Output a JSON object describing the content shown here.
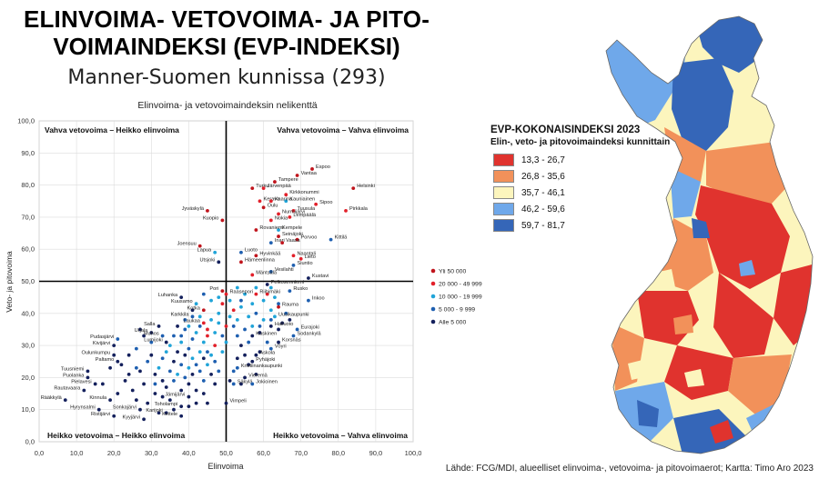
{
  "title_line1": "ELINVOIMA- VETOVOIMA- JA PITO-",
  "title_line2": "VOIMAINDEKSI (EVP-INDEKSI)",
  "subtitle": "Manner-Suomen kunnissa (293)",
  "chart_data": {
    "type": "scatter",
    "title": "Elinvoima- ja vetovoimaindeksin nelikenttä",
    "xlabel": "Elinvoima",
    "ylabel": "Veto- ja pitovoima",
    "xlim": [
      0,
      100
    ],
    "ylim": [
      0,
      100
    ],
    "xticks": [
      "0,0",
      "10,0",
      "20,0",
      "30,0",
      "40,0",
      "50,0",
      "60,0",
      "70,0",
      "80,0",
      "90,0",
      "100,0"
    ],
    "yticks": [
      "0,0",
      "10,0",
      "20,0",
      "30,0",
      "40,0",
      "50,0",
      "60,0",
      "70,0",
      "80,0",
      "90,0",
      "100,0"
    ],
    "divider_x": 50,
    "divider_y": 50,
    "grid": true,
    "quadrants": {
      "top_left": "Vahva vetovoima – Heikko elinvoima",
      "top_right": "Vahva vetovoima – Vahva elinvoima",
      "bottom_left": "Heikko vetovoima – Heikko elinvoima",
      "bottom_right": "Heikko vetovoima – Vahva elinvoima"
    },
    "legend_placement": "right",
    "categories": [
      {
        "key": "c1",
        "label": "Yli 50 000",
        "color": "#c0141c"
      },
      {
        "key": "c2",
        "label": "20 000 - 49 999",
        "color": "#e2202a"
      },
      {
        "key": "c3",
        "label": "10 000 - 19 999",
        "color": "#20a4d8"
      },
      {
        "key": "c4",
        "label": "5 000 - 9 999",
        "color": "#1e5fb0"
      },
      {
        "key": "c5",
        "label": "Alle 5 000",
        "color": "#14205c"
      }
    ],
    "labeled_points": [
      {
        "name": "Espoo",
        "x": 73,
        "y": 85,
        "cat": "c1"
      },
      {
        "name": "Vantaa",
        "x": 69,
        "y": 83,
        "cat": "c1"
      },
      {
        "name": "Helsinki",
        "x": 84,
        "y": 79,
        "cat": "c1"
      },
      {
        "name": "Tampere",
        "x": 63,
        "y": 81,
        "cat": "c1"
      },
      {
        "name": "Turku",
        "x": 57,
        "y": 79,
        "cat": "c1"
      },
      {
        "name": "Järvenpää",
        "x": 60,
        "y": 79,
        "cat": "c2"
      },
      {
        "name": "Kirkkonummi",
        "x": 66,
        "y": 77,
        "cat": "c2"
      },
      {
        "name": "Kauniainen",
        "x": 66,
        "y": 75,
        "cat": "c3"
      },
      {
        "name": "Kerava",
        "x": 59,
        "y": 75,
        "cat": "c2"
      },
      {
        "name": "Kaarina",
        "x": 62,
        "y": 75,
        "cat": "c2"
      },
      {
        "name": "Sipoo",
        "x": 74,
        "y": 74,
        "cat": "c2"
      },
      {
        "name": "Oulu",
        "x": 60,
        "y": 73,
        "cat": "c1"
      },
      {
        "name": "Tuusula",
        "x": 68,
        "y": 72,
        "cat": "c2"
      },
      {
        "name": "Pirkkala",
        "x": 82,
        "y": 72,
        "cat": "c2"
      },
      {
        "name": "Nurmijärvi",
        "x": 64,
        "y": 71,
        "cat": "c2"
      },
      {
        "name": "Jyväskylä",
        "x": 45,
        "y": 72,
        "cat": "c1"
      },
      {
        "name": "Lempäälä",
        "x": 67,
        "y": 70,
        "cat": "c2"
      },
      {
        "name": "Kuopio",
        "x": 49,
        "y": 69,
        "cat": "c1"
      },
      {
        "name": "Nokia",
        "x": 62,
        "y": 69,
        "cat": "c2"
      },
      {
        "name": "Kempele",
        "x": 64,
        "y": 66,
        "cat": "c3"
      },
      {
        "name": "Rovaniemi",
        "x": 58,
        "y": 66,
        "cat": "c1"
      },
      {
        "name": "Seinäjoki",
        "x": 64,
        "y": 64,
        "cat": "c1"
      },
      {
        "name": "Porvoo",
        "x": 69,
        "y": 63,
        "cat": "c1"
      },
      {
        "name": "Inari",
        "x": 62,
        "y": 62,
        "cat": "c4"
      },
      {
        "name": "Vaasa",
        "x": 65,
        "y": 62,
        "cat": "c1"
      },
      {
        "name": "Kittilä",
        "x": 78,
        "y": 63,
        "cat": "c4"
      },
      {
        "name": "Joensuu",
        "x": 43,
        "y": 61,
        "cat": "c1"
      },
      {
        "name": "Naantali",
        "x": 68,
        "y": 58,
        "cat": "c2"
      },
      {
        "name": "Lapua",
        "x": 47,
        "y": 59,
        "cat": "c3"
      },
      {
        "name": "Luoto",
        "x": 54,
        "y": 59,
        "cat": "c4"
      },
      {
        "name": "Hyvinkää",
        "x": 58,
        "y": 58,
        "cat": "c1"
      },
      {
        "name": "Lieto",
        "x": 70,
        "y": 57,
        "cat": "c2"
      },
      {
        "name": "Utsjoki",
        "x": 48,
        "y": 56,
        "cat": "c5"
      },
      {
        "name": "Hämeenlinna",
        "x": 54,
        "y": 56,
        "cat": "c1"
      },
      {
        "name": "Siuntio",
        "x": 68,
        "y": 55,
        "cat": "c4"
      },
      {
        "name": "Vesilahti",
        "x": 62,
        "y": 53,
        "cat": "c4"
      },
      {
        "name": "Mäntsälä",
        "x": 57,
        "y": 52,
        "cat": "c2"
      },
      {
        "name": "Kustavi",
        "x": 72,
        "y": 51,
        "cat": "c5"
      },
      {
        "name": "Pelkosenniemi",
        "x": 61,
        "y": 49,
        "cat": "c5"
      },
      {
        "name": "Pori",
        "x": 49,
        "y": 47,
        "cat": "c1"
      },
      {
        "name": "Rusko",
        "x": 67,
        "y": 47,
        "cat": "c4"
      },
      {
        "name": "Raasepori",
        "x": 50,
        "y": 46,
        "cat": "c2"
      },
      {
        "name": "Riihimäki",
        "x": 58,
        "y": 46,
        "cat": "c2"
      },
      {
        "name": "Luhanka",
        "x": 38,
        "y": 45,
        "cat": "c5"
      },
      {
        "name": "Kuusamo",
        "x": 42,
        "y": 43,
        "cat": "c3"
      },
      {
        "name": "Inkoo",
        "x": 72,
        "y": 44,
        "cat": "c4"
      },
      {
        "name": "Rauma",
        "x": 64,
        "y": 42,
        "cat": "c1"
      },
      {
        "name": "Kotka",
        "x": 44,
        "y": 41,
        "cat": "c1"
      },
      {
        "name": "Karkkila",
        "x": 41,
        "y": 39,
        "cat": "c4"
      },
      {
        "name": "Uusikaupunki",
        "x": 63,
        "y": 39,
        "cat": "c3"
      },
      {
        "name": "Laukaa",
        "x": 44,
        "y": 37,
        "cat": "c2"
      },
      {
        "name": "Salla",
        "x": 32,
        "y": 36,
        "cat": "c5"
      },
      {
        "name": "Hailuoto",
        "x": 62,
        "y": 36,
        "cat": "c5"
      },
      {
        "name": "Urjala",
        "x": 30,
        "y": 34,
        "cat": "c5"
      },
      {
        "name": "Eurajoki",
        "x": 69,
        "y": 35,
        "cat": "c4"
      },
      {
        "name": "Muhos",
        "x": 33,
        "y": 33,
        "cat": "c4"
      },
      {
        "name": "Pudasjärvi",
        "x": 21,
        "y": 32,
        "cat": "c4"
      },
      {
        "name": "Kaskinen",
        "x": 57,
        "y": 33,
        "cat": "c5"
      },
      {
        "name": "Sodankylä",
        "x": 68,
        "y": 33,
        "cat": "c4"
      },
      {
        "name": "Lumijoki",
        "x": 34,
        "y": 31,
        "cat": "c5"
      },
      {
        "name": "Korsnäs",
        "x": 64,
        "y": 31,
        "cat": "c5"
      },
      {
        "name": "Kivijärvi",
        "x": 20,
        "y": 30,
        "cat": "c5"
      },
      {
        "name": "Vöyri",
        "x": 62,
        "y": 29,
        "cat": "c4"
      },
      {
        "name": "Oulunkumpu",
        "x": 20,
        "y": 27,
        "cat": "c5"
      },
      {
        "name": "Askola",
        "x": 58,
        "y": 27,
        "cat": "c5"
      },
      {
        "name": "Paltamo",
        "x": 21,
        "y": 25,
        "cat": "c5"
      },
      {
        "name": "Pyhäjoki",
        "x": 57,
        "y": 25,
        "cat": "c5"
      },
      {
        "name": "Kristiinankaupunki",
        "x": 53,
        "y": 23,
        "cat": "c4"
      },
      {
        "name": "Tuusniemi",
        "x": 13,
        "y": 22,
        "cat": "c5"
      },
      {
        "name": "Vieremä",
        "x": 55,
        "y": 20,
        "cat": "c5"
      },
      {
        "name": "Puolanka",
        "x": 13,
        "y": 20,
        "cat": "c5"
      },
      {
        "name": "Pielavesi",
        "x": 15,
        "y": 18,
        "cat": "c5"
      },
      {
        "name": "Säkylä",
        "x": 52,
        "y": 18,
        "cat": "c4"
      },
      {
        "name": "Jokioinen",
        "x": 57,
        "y": 18,
        "cat": "c4"
      },
      {
        "name": "Rautavaara",
        "x": 12,
        "y": 16,
        "cat": "c5"
      },
      {
        "name": "Jämijärvi",
        "x": 40,
        "y": 14,
        "cat": "c5"
      },
      {
        "name": "Rääkkylä",
        "x": 7,
        "y": 13,
        "cat": "c5"
      },
      {
        "name": "Kinnula",
        "x": 19,
        "y": 13,
        "cat": "c5"
      },
      {
        "name": "Vimpeli",
        "x": 50,
        "y": 12,
        "cat": "c5"
      },
      {
        "name": "Hyrynsalmi",
        "x": 16,
        "y": 10,
        "cat": "c5"
      },
      {
        "name": "Toholampi",
        "x": 38,
        "y": 11,
        "cat": "c5"
      },
      {
        "name": "Sonkajärvi",
        "x": 27,
        "y": 10,
        "cat": "c5"
      },
      {
        "name": "Karijoki",
        "x": 34,
        "y": 9,
        "cat": "c5"
      },
      {
        "name": "Ristijärvi",
        "x": 20,
        "y": 8,
        "cat": "c5"
      },
      {
        "name": "Keitele",
        "x": 38,
        "y": 8,
        "cat": "c5"
      },
      {
        "name": "Kyyjärvi",
        "x": 28,
        "y": 7,
        "cat": "c5"
      }
    ],
    "other_points": [
      [
        22,
        24,
        "c5"
      ],
      [
        24,
        27,
        "c5"
      ],
      [
        26,
        29,
        "c4"
      ],
      [
        27,
        22,
        "c5"
      ],
      [
        28,
        18,
        "c5"
      ],
      [
        29,
        25,
        "c4"
      ],
      [
        30,
        27,
        "c5"
      ],
      [
        31,
        21,
        "c5"
      ],
      [
        31,
        15,
        "c5"
      ],
      [
        32,
        23,
        "c3"
      ],
      [
        33,
        26,
        "c4"
      ],
      [
        33,
        19,
        "c5"
      ],
      [
        34,
        28,
        "c3"
      ],
      [
        34,
        17,
        "c5"
      ],
      [
        35,
        22,
        "c4"
      ],
      [
        35,
        30,
        "c3"
      ],
      [
        35,
        13,
        "c5"
      ],
      [
        36,
        25,
        "c5"
      ],
      [
        36,
        19,
        "c4"
      ],
      [
        36,
        33,
        "c4"
      ],
      [
        37,
        21,
        "c3"
      ],
      [
        37,
        28,
        "c5"
      ],
      [
        38,
        24,
        "c4"
      ],
      [
        38,
        16,
        "c5"
      ],
      [
        38,
        31,
        "c3"
      ],
      [
        39,
        27,
        "c5"
      ],
      [
        39,
        20,
        "c4"
      ],
      [
        39,
        35,
        "c4"
      ],
      [
        40,
        23,
        "c3"
      ],
      [
        40,
        29,
        "c4"
      ],
      [
        40,
        18,
        "c5"
      ],
      [
        41,
        26,
        "c3"
      ],
      [
        41,
        32,
        "c4"
      ],
      [
        41,
        21,
        "c5"
      ],
      [
        42,
        24,
        "c4"
      ],
      [
        42,
        34,
        "c3"
      ],
      [
        42,
        16,
        "c5"
      ],
      [
        43,
        28,
        "c3"
      ],
      [
        43,
        22,
        "c4"
      ],
      [
        43,
        36,
        "c4"
      ],
      [
        44,
        26,
        "c5"
      ],
      [
        44,
        31,
        "c3"
      ],
      [
        44,
        19,
        "c4"
      ],
      [
        45,
        24,
        "c3"
      ],
      [
        45,
        33,
        "c2"
      ],
      [
        45,
        28,
        "c4"
      ],
      [
        46,
        21,
        "c5"
      ],
      [
        46,
        38,
        "c3"
      ],
      [
        46,
        27,
        "c3"
      ],
      [
        47,
        25,
        "c4"
      ],
      [
        47,
        34,
        "c3"
      ],
      [
        47,
        30,
        "c2"
      ],
      [
        48,
        22,
        "c4"
      ],
      [
        48,
        37,
        "c3"
      ],
      [
        48,
        40,
        "c3"
      ],
      [
        49,
        28,
        "c3"
      ],
      [
        49,
        33,
        "c4"
      ],
      [
        49,
        43,
        "c2"
      ],
      [
        46,
        44,
        "c3"
      ],
      [
        44,
        46,
        "c4"
      ],
      [
        41,
        41,
        "c5"
      ],
      [
        39,
        38,
        "c4"
      ],
      [
        37,
        36,
        "c5"
      ],
      [
        51,
        39,
        "c3"
      ],
      [
        51,
        44,
        "c3"
      ],
      [
        52,
        36,
        "c4"
      ],
      [
        52,
        41,
        "c2"
      ],
      [
        53,
        33,
        "c4"
      ],
      [
        53,
        38,
        "c3"
      ],
      [
        54,
        30,
        "c5"
      ],
      [
        54,
        42,
        "c3"
      ],
      [
        55,
        35,
        "c4"
      ],
      [
        55,
        27,
        "c5"
      ],
      [
        56,
        39,
        "c3"
      ],
      [
        56,
        31,
        "c4"
      ],
      [
        57,
        36,
        "c3"
      ],
      [
        58,
        40,
        "c4"
      ],
      [
        59,
        34,
        "c5"
      ],
      [
        60,
        38,
        "c3"
      ],
      [
        60,
        44,
        "c3"
      ],
      [
        61,
        31,
        "c4"
      ],
      [
        62,
        41,
        "c3"
      ],
      [
        63,
        45,
        "c3"
      ],
      [
        65,
        37,
        "c5"
      ],
      [
        66,
        40,
        "c4"
      ],
      [
        55,
        46,
        "c3"
      ],
      [
        53,
        48,
        "c3"
      ],
      [
        58,
        48,
        "c3"
      ],
      [
        61,
        46,
        "c2"
      ],
      [
        52,
        22,
        "c4"
      ],
      [
        53,
        26,
        "c5"
      ],
      [
        51,
        19,
        "c5"
      ],
      [
        25,
        16,
        "c5"
      ],
      [
        23,
        19,
        "c5"
      ],
      [
        26,
        13,
        "c5"
      ],
      [
        29,
        12,
        "c5"
      ],
      [
        32,
        9,
        "c5"
      ],
      [
        30,
        31,
        "c4"
      ],
      [
        28,
        33,
        "c5"
      ],
      [
        26,
        23,
        "c4"
      ],
      [
        24,
        21,
        "c5"
      ],
      [
        19,
        23,
        "c5"
      ],
      [
        17,
        18,
        "c5"
      ],
      [
        21,
        15,
        "c5"
      ],
      [
        27,
        35,
        "c5"
      ],
      [
        42,
        12,
        "c5"
      ],
      [
        44,
        15,
        "c5"
      ],
      [
        36,
        10,
        "c5"
      ],
      [
        40,
        11,
        "c5"
      ],
      [
        45,
        35,
        "c2"
      ],
      [
        43,
        39,
        "c3"
      ],
      [
        50,
        36,
        "c2"
      ],
      [
        50,
        31,
        "c3"
      ],
      [
        57,
        43,
        "c3"
      ],
      [
        62,
        38,
        "c4"
      ],
      [
        64,
        35,
        "c5"
      ],
      [
        59,
        28,
        "c5"
      ],
      [
        56,
        24,
        "c5"
      ],
      [
        54,
        18,
        "c5"
      ],
      [
        58,
        21,
        "c5"
      ],
      [
        47,
        18,
        "c5"
      ],
      [
        45,
        12,
        "c5"
      ],
      [
        33,
        14,
        "c5"
      ],
      [
        31,
        18,
        "c4"
      ],
      [
        38,
        33,
        "c4"
      ],
      [
        40,
        36,
        "c3"
      ],
      [
        48,
        45,
        "c3"
      ],
      [
        54,
        44,
        "c4"
      ],
      [
        62,
        48,
        "c3"
      ],
      [
        64,
        43,
        "c4"
      ],
      [
        67,
        38,
        "c5"
      ],
      [
        59,
        36,
        "c4"
      ]
    ]
  },
  "map_legend": {
    "title": "EVP-KOKONAISINDEKSI 2023",
    "subtitle": "Elin-, veto- ja pitovoimaindeksi kunnittain",
    "classes": [
      {
        "label": "13,3 - 26,7",
        "color": "#e0332e"
      },
      {
        "label": "26,8 - 35,6",
        "color": "#f2915a"
      },
      {
        "label": "35,7 - 46,1",
        "color": "#fcf5bd"
      },
      {
        "label": "46,2 - 59,6",
        "color": "#6fa8ea"
      },
      {
        "label": "59,7 - 81,7",
        "color": "#3566b8"
      }
    ]
  },
  "source": "Lähde: FCG/MDI, alueelliset elinvoima-, vetovoima- ja pitovoimaerot; Kartta: Timo Aro 2023"
}
